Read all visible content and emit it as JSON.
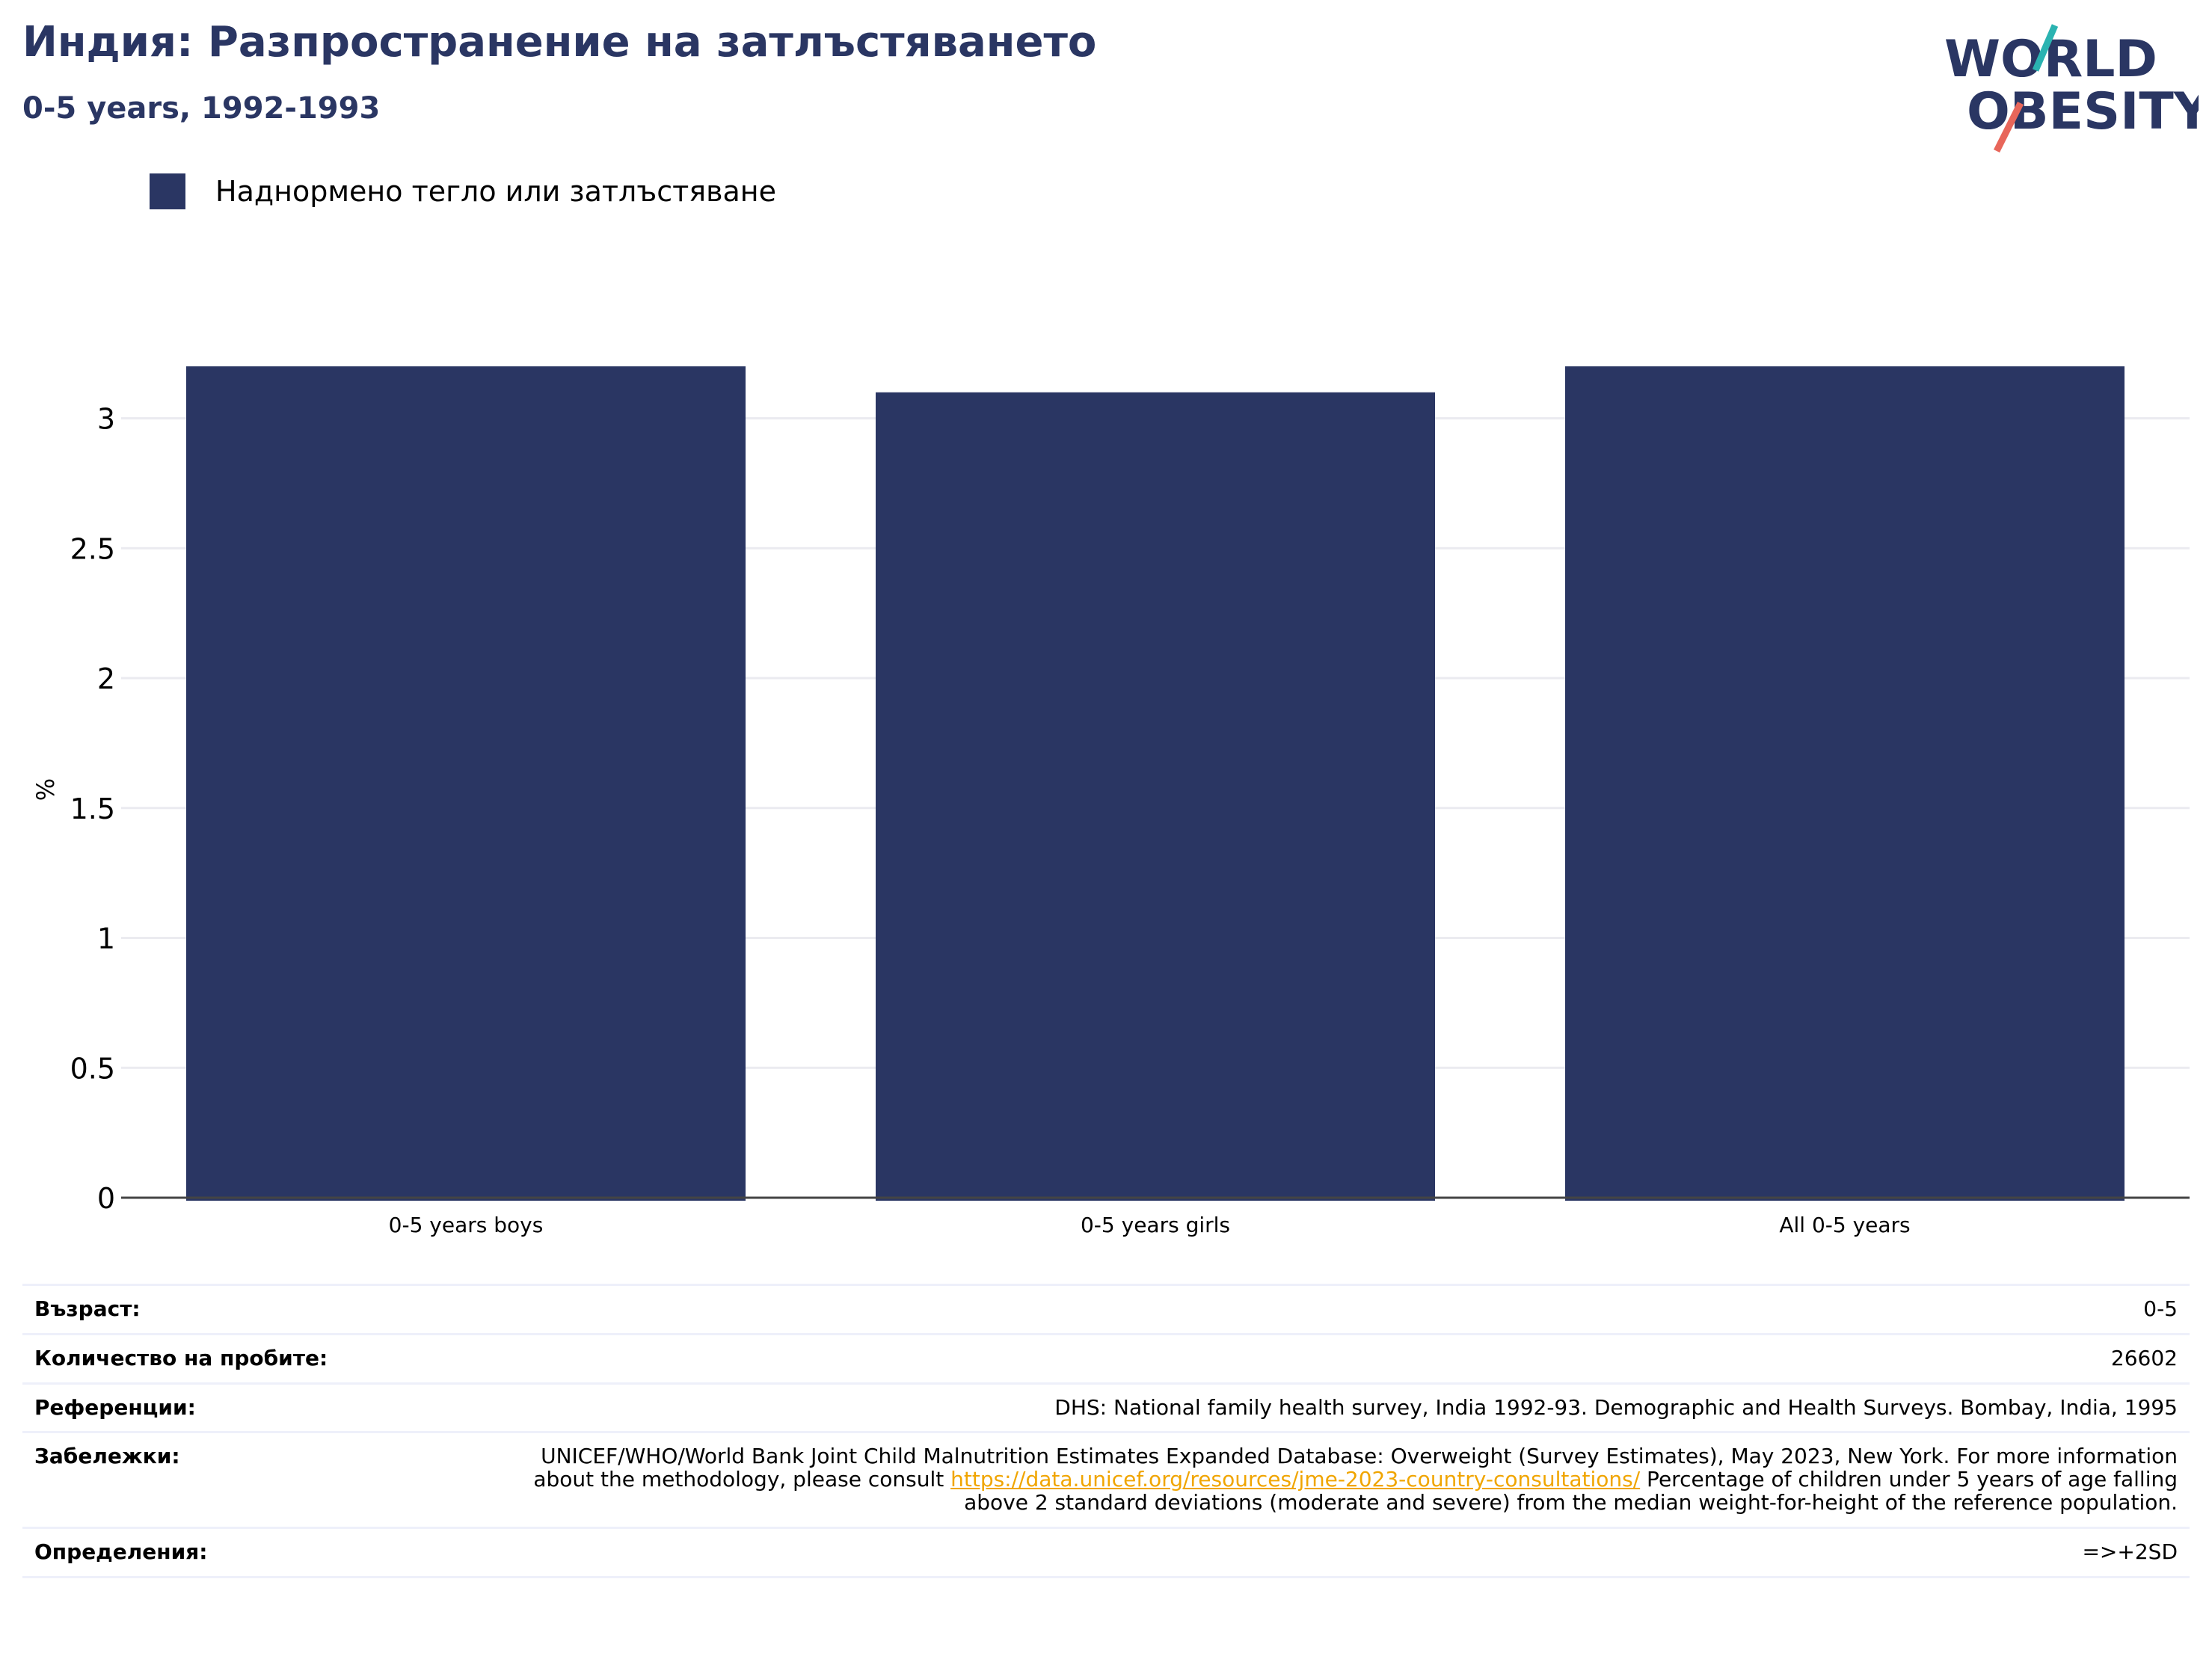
{
  "header": {
    "title": "Индия: Разпространение на затлъстяването",
    "subtitle": "0-5 years, 1992-1993"
  },
  "logo": {
    "line1": "WORLD",
    "line2": "OBESITY"
  },
  "colors": {
    "bar": "#2a3663",
    "title": "#2a3663",
    "link": "#f0a500",
    "slash_teal": "#2bb3b1",
    "slash_red": "#e8665a"
  },
  "chart_data": {
    "type": "bar",
    "categories": [
      "0-5 years boys",
      "0-5 years girls",
      "All 0-5 years"
    ],
    "series": [
      {
        "name": "Наднормено тегло или затлъстяване",
        "values": [
          3.2,
          3.1,
          3.2
        ]
      }
    ],
    "xlabel": "",
    "ylabel": "%",
    "ylim": [
      0,
      3.2
    ],
    "yticks": [
      0,
      0.5,
      1,
      1.5,
      2,
      2.5,
      3
    ],
    "ytick_labels": [
      "0",
      "0.5",
      "1",
      "1.5",
      "2",
      "2.5",
      "3"
    ],
    "grid": true,
    "legend": "top-left"
  },
  "meta": {
    "age": {
      "label": "Възраст:",
      "value": "0-5"
    },
    "sample": {
      "label": "Количество на пробите:",
      "value": "26602"
    },
    "references": {
      "label": "Референции:",
      "value": "DHS: National family health survey, India 1992-93. Demographic and Health Surveys. Bombay, India, 1995"
    },
    "notes": {
      "label": "Забележки:",
      "before": "UNICEF/WHO/World Bank Joint Child Malnutrition Estimates Expanded Database: Overweight (Survey Estimates), May 2023, New York. For more information about the methodology, please consult ",
      "link": "https://data.unicef.org/resources/jme-2023-country-consultations/",
      "after": " Percentage of children under 5 years of age falling above 2 standard deviations (moderate and severe) from the median weight-for-height of the reference population."
    },
    "definitions": {
      "label": "Определения:",
      "value": "=>+2SD"
    }
  }
}
